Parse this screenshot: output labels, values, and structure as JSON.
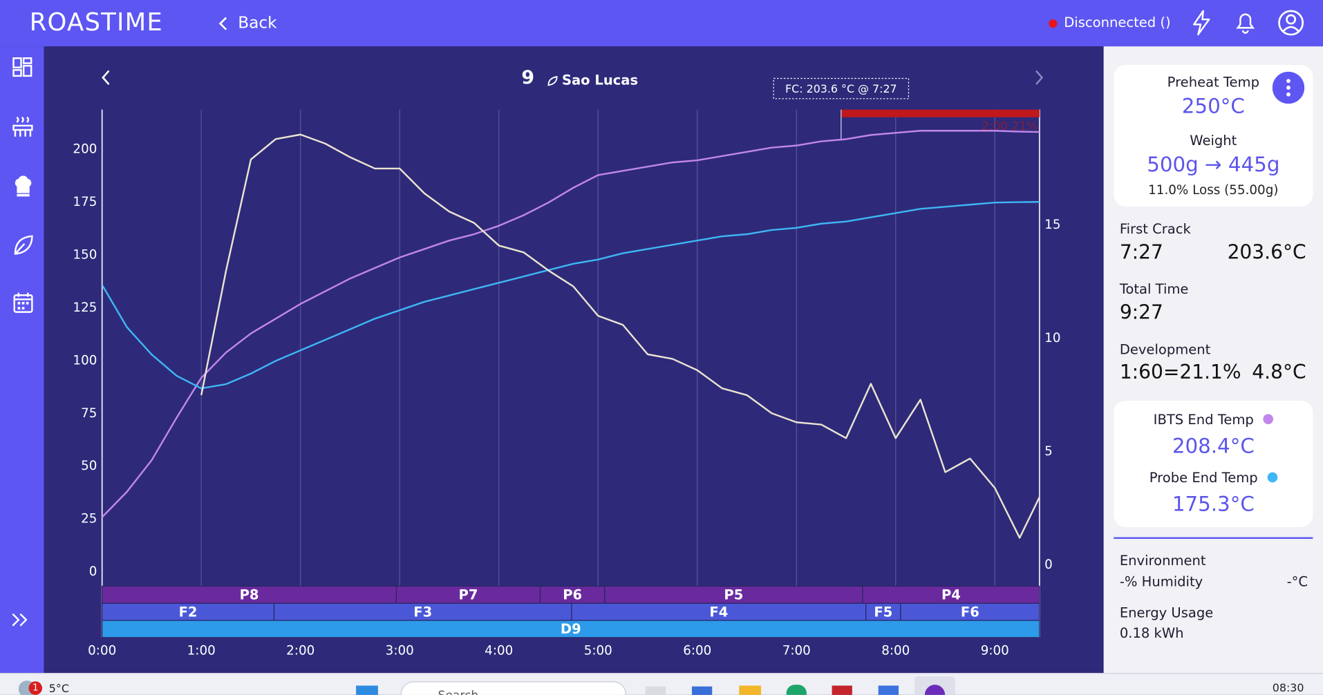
{
  "header": {
    "logo": "ROASTIME",
    "back": "Back",
    "status": "Disconnected ()"
  },
  "chart_data": {
    "type": "line",
    "batch": "9",
    "title": "Sao Lucas",
    "annotation": "FC: 203.6 °C @ 7:27",
    "x": [
      0,
      15,
      30,
      45,
      60,
      75,
      90,
      105,
      120,
      135,
      150,
      165,
      180,
      195,
      210,
      225,
      240,
      255,
      270,
      285,
      300,
      315,
      330,
      345,
      360,
      375,
      390,
      405,
      420,
      435,
      450,
      465,
      480,
      495,
      510,
      525,
      540,
      555,
      567
    ],
    "xlim": [
      0,
      567
    ],
    "xticks": [
      {
        "value": 0,
        "label": "0:00"
      },
      {
        "value": 60,
        "label": "1:00"
      },
      {
        "value": 120,
        "label": "2:00"
      },
      {
        "value": 180,
        "label": "3:00"
      },
      {
        "value": 240,
        "label": "4:00"
      },
      {
        "value": 300,
        "label": "5:00"
      },
      {
        "value": 360,
        "label": "6:00"
      },
      {
        "value": 420,
        "label": "7:00"
      },
      {
        "value": 480,
        "label": "8:00"
      },
      {
        "value": 540,
        "label": "9:00"
      }
    ],
    "ylim": [
      -31,
      219
    ],
    "yticks": [
      0,
      25,
      50,
      75,
      100,
      125,
      150,
      175,
      200
    ],
    "y2lim": [
      -3.2,
      20.1
    ],
    "y2ticks": [
      0,
      5,
      10,
      15
    ],
    "grid": "x",
    "series": [
      {
        "color": "#c286ea",
        "values": [
          26,
          38,
          53,
          73,
          92,
          104,
          113,
          120,
          127,
          133,
          139,
          144,
          149,
          153,
          157,
          160,
          164,
          169,
          175,
          182,
          188,
          190,
          192,
          194,
          195,
          197,
          199,
          201,
          202,
          204,
          205,
          207,
          208,
          209,
          209,
          209,
          209,
          208.6,
          208.4
        ]
      },
      {
        "color": "#3fb6f6",
        "values": [
          136,
          116,
          103,
          93,
          87,
          89,
          94,
          100,
          105,
          110,
          115,
          120,
          124,
          128,
          131,
          134,
          137,
          140,
          143,
          146,
          148,
          151,
          153,
          155,
          157,
          159,
          160,
          162,
          163,
          165,
          166,
          168,
          170,
          172,
          173,
          174,
          175,
          175.2,
          175.3
        ]
      },
      {
        "color": "#ebe4d2",
        "axis": "y2",
        "values": [
          null,
          null,
          null,
          null,
          7.5,
          13,
          17.9,
          18.8,
          19,
          18.6,
          18,
          17.5,
          17.5,
          16.4,
          15.6,
          15.1,
          14.1,
          13.8,
          13,
          12.3,
          11,
          10.6,
          9.3,
          9.1,
          8.6,
          7.8,
          7.5,
          6.7,
          6.3,
          6.2,
          5.6,
          8,
          5.6,
          7.3,
          4.1,
          4.7,
          3.4,
          1.2,
          3.0
        ]
      }
    ],
    "fc_marker": 447,
    "development_bar": {
      "start": 447,
      "end": 567,
      "label": "2:00 21%",
      "color": "#c0181c"
    },
    "phase_rows": [
      {
        "color": "#6a2a9e",
        "segments": [
          {
            "label": "P8",
            "start": 0,
            "end": 178
          },
          {
            "label": "P7",
            "start": 178,
            "end": 265
          },
          {
            "label": "P6",
            "start": 265,
            "end": 304
          },
          {
            "label": "P5",
            "start": 304,
            "end": 460
          },
          {
            "label": "P4",
            "start": 460,
            "end": 567
          }
        ]
      },
      {
        "color": "#4a58d8",
        "segments": [
          {
            "label": "F2",
            "start": 0,
            "end": 104
          },
          {
            "label": "F3",
            "start": 104,
            "end": 284
          },
          {
            "label": "F4",
            "start": 284,
            "end": 462
          },
          {
            "label": "F5",
            "start": 462,
            "end": 483
          },
          {
            "label": "F6",
            "start": 483,
            "end": 567
          }
        ]
      },
      {
        "color": "#2d9bea",
        "segments": [
          {
            "label": "D9",
            "start": 0,
            "end": 567
          }
        ]
      }
    ]
  },
  "panel": {
    "preheat_label": "Preheat Temp",
    "preheat_value": "250°C",
    "weight_label": "Weight",
    "weight_value": "500g → 445g",
    "loss": "11.0% Loss (55.00g)",
    "first_crack_label": "First Crack",
    "first_crack_time": "7:27",
    "first_crack_temp": "203.6°C",
    "total_time_label": "Total Time",
    "total_time": "9:27",
    "development_label": "Development",
    "development_ratio": "1:60=21.1%",
    "development_delta": "4.8°C",
    "ibts_label": "IBTS End Temp",
    "ibts_value": "208.4°C",
    "probe_label": "Probe End Temp",
    "probe_value": "175.3°C",
    "environment_label": "Environment",
    "humidity": "-% Humidity",
    "env_temp": "-°C",
    "energy_label": "Energy Usage",
    "energy_value": "0.18 kWh"
  },
  "taskbar": {
    "badge": "1",
    "weather": "5°C",
    "search": "Search",
    "clock": "08:30"
  }
}
